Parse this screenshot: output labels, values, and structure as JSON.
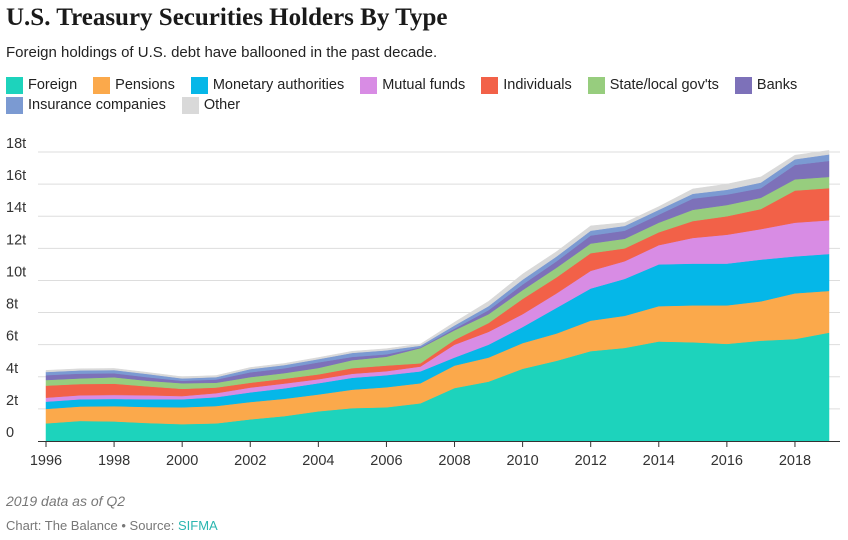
{
  "header": {
    "title": "U.S. Treasury Securities Holders By Type",
    "subtitle": "Foreign holdings of U.S. debt have ballooned in the past decade."
  },
  "footer": {
    "note": "2019 data as of Q2",
    "credit_prefix": "Chart: The Balance • Source: ",
    "source_name": "SIFMA"
  },
  "colors": {
    "Foreign": "#1dd3bc",
    "Pensions": "#fba94b",
    "Monetary authorities": "#05b7e8",
    "Mutual funds": "#d88ce4",
    "Individuals": "#f26148",
    "State/local gov'ts": "#97cd7e",
    "Banks": "#7d71b9",
    "Insurance companies": "#7b9ad2",
    "Other": "#d9d9d9",
    "grid": "#dddddd",
    "axis": "#333333"
  },
  "chart_data": {
    "type": "area",
    "stacked": true,
    "title": "",
    "xlabel": "",
    "ylabel": "",
    "x": [
      1996,
      1997,
      1998,
      1999,
      2000,
      2001,
      2002,
      2003,
      2004,
      2005,
      2006,
      2007,
      2008,
      2009,
      2010,
      2011,
      2012,
      2013,
      2014,
      2015,
      2016,
      2017,
      2018,
      2019
    ],
    "xlim": [
      1996,
      2019
    ],
    "ylim": [
      0,
      18
    ],
    "x_ticks": [
      1996,
      1998,
      2000,
      2002,
      2004,
      2006,
      2008,
      2010,
      2012,
      2014,
      2016,
      2018
    ],
    "y_ticks": [
      0,
      2,
      4,
      6,
      8,
      10,
      12,
      14,
      16,
      18
    ],
    "y_tick_labels": [
      "0",
      "2t",
      "4t",
      "6t",
      "8t",
      "10t",
      "12t",
      "14t",
      "16t",
      "18t"
    ],
    "grid": true,
    "legend_position": "top",
    "series": [
      {
        "name": "Foreign",
        "values": [
          1.1,
          1.25,
          1.22,
          1.12,
          1.05,
          1.1,
          1.35,
          1.55,
          1.85,
          2.05,
          2.1,
          2.35,
          3.3,
          3.7,
          4.5,
          5.0,
          5.6,
          5.8,
          6.2,
          6.15,
          6.05,
          6.25,
          6.35,
          6.75
        ]
      },
      {
        "name": "Pensions",
        "values": [
          0.9,
          0.9,
          0.95,
          1.0,
          1.05,
          1.08,
          1.08,
          1.08,
          1.05,
          1.15,
          1.25,
          1.25,
          1.4,
          1.5,
          1.6,
          1.7,
          1.9,
          2.0,
          2.2,
          2.3,
          2.4,
          2.45,
          2.85,
          2.6
        ]
      },
      {
        "name": "Monetary authorities",
        "values": [
          0.45,
          0.45,
          0.45,
          0.48,
          0.5,
          0.55,
          0.6,
          0.65,
          0.7,
          0.74,
          0.75,
          0.74,
          0.5,
          0.8,
          1.0,
          1.6,
          2.0,
          2.3,
          2.6,
          2.6,
          2.6,
          2.6,
          2.3,
          2.3
        ]
      },
      {
        "name": "Mutual funds",
        "values": [
          0.25,
          0.25,
          0.25,
          0.25,
          0.2,
          0.25,
          0.3,
          0.3,
          0.25,
          0.25,
          0.25,
          0.3,
          0.8,
          0.8,
          0.8,
          0.9,
          1.1,
          1.1,
          1.2,
          1.6,
          1.8,
          1.9,
          2.1,
          2.1
        ]
      },
      {
        "name": "Individuals",
        "values": [
          0.75,
          0.7,
          0.7,
          0.55,
          0.45,
          0.35,
          0.3,
          0.3,
          0.3,
          0.35,
          0.35,
          0.2,
          0.3,
          0.55,
          0.95,
          1.0,
          1.1,
          0.8,
          0.8,
          1.05,
          1.15,
          1.25,
          2.0,
          2.0
        ]
      },
      {
        "name": "State/local gov'ts",
        "values": [
          0.35,
          0.35,
          0.4,
          0.35,
          0.35,
          0.3,
          0.35,
          0.35,
          0.4,
          0.5,
          0.55,
          0.95,
          0.6,
          0.55,
          0.55,
          0.6,
          0.6,
          0.6,
          0.6,
          0.7,
          0.7,
          0.7,
          0.7,
          0.7
        ]
      },
      {
        "name": "Banks",
        "values": [
          0.3,
          0.3,
          0.25,
          0.22,
          0.15,
          0.2,
          0.3,
          0.3,
          0.35,
          0.2,
          0.15,
          0.05,
          0.1,
          0.25,
          0.35,
          0.4,
          0.5,
          0.5,
          0.5,
          0.7,
          0.65,
          0.6,
          0.9,
          1.0
        ]
      },
      {
        "name": "Insurance companies",
        "values": [
          0.2,
          0.2,
          0.2,
          0.2,
          0.15,
          0.15,
          0.2,
          0.2,
          0.2,
          0.25,
          0.25,
          0.1,
          0.2,
          0.25,
          0.3,
          0.3,
          0.3,
          0.3,
          0.3,
          0.3,
          0.3,
          0.35,
          0.35,
          0.4
        ]
      },
      {
        "name": "Other",
        "values": [
          0.1,
          0.1,
          0.1,
          0.1,
          0.1,
          0.1,
          0.1,
          0.1,
          0.1,
          0.1,
          0.1,
          0.1,
          0.2,
          0.3,
          0.35,
          0.3,
          0.3,
          0.2,
          0.2,
          0.3,
          0.35,
          0.35,
          0.25,
          0.25
        ]
      }
    ]
  }
}
